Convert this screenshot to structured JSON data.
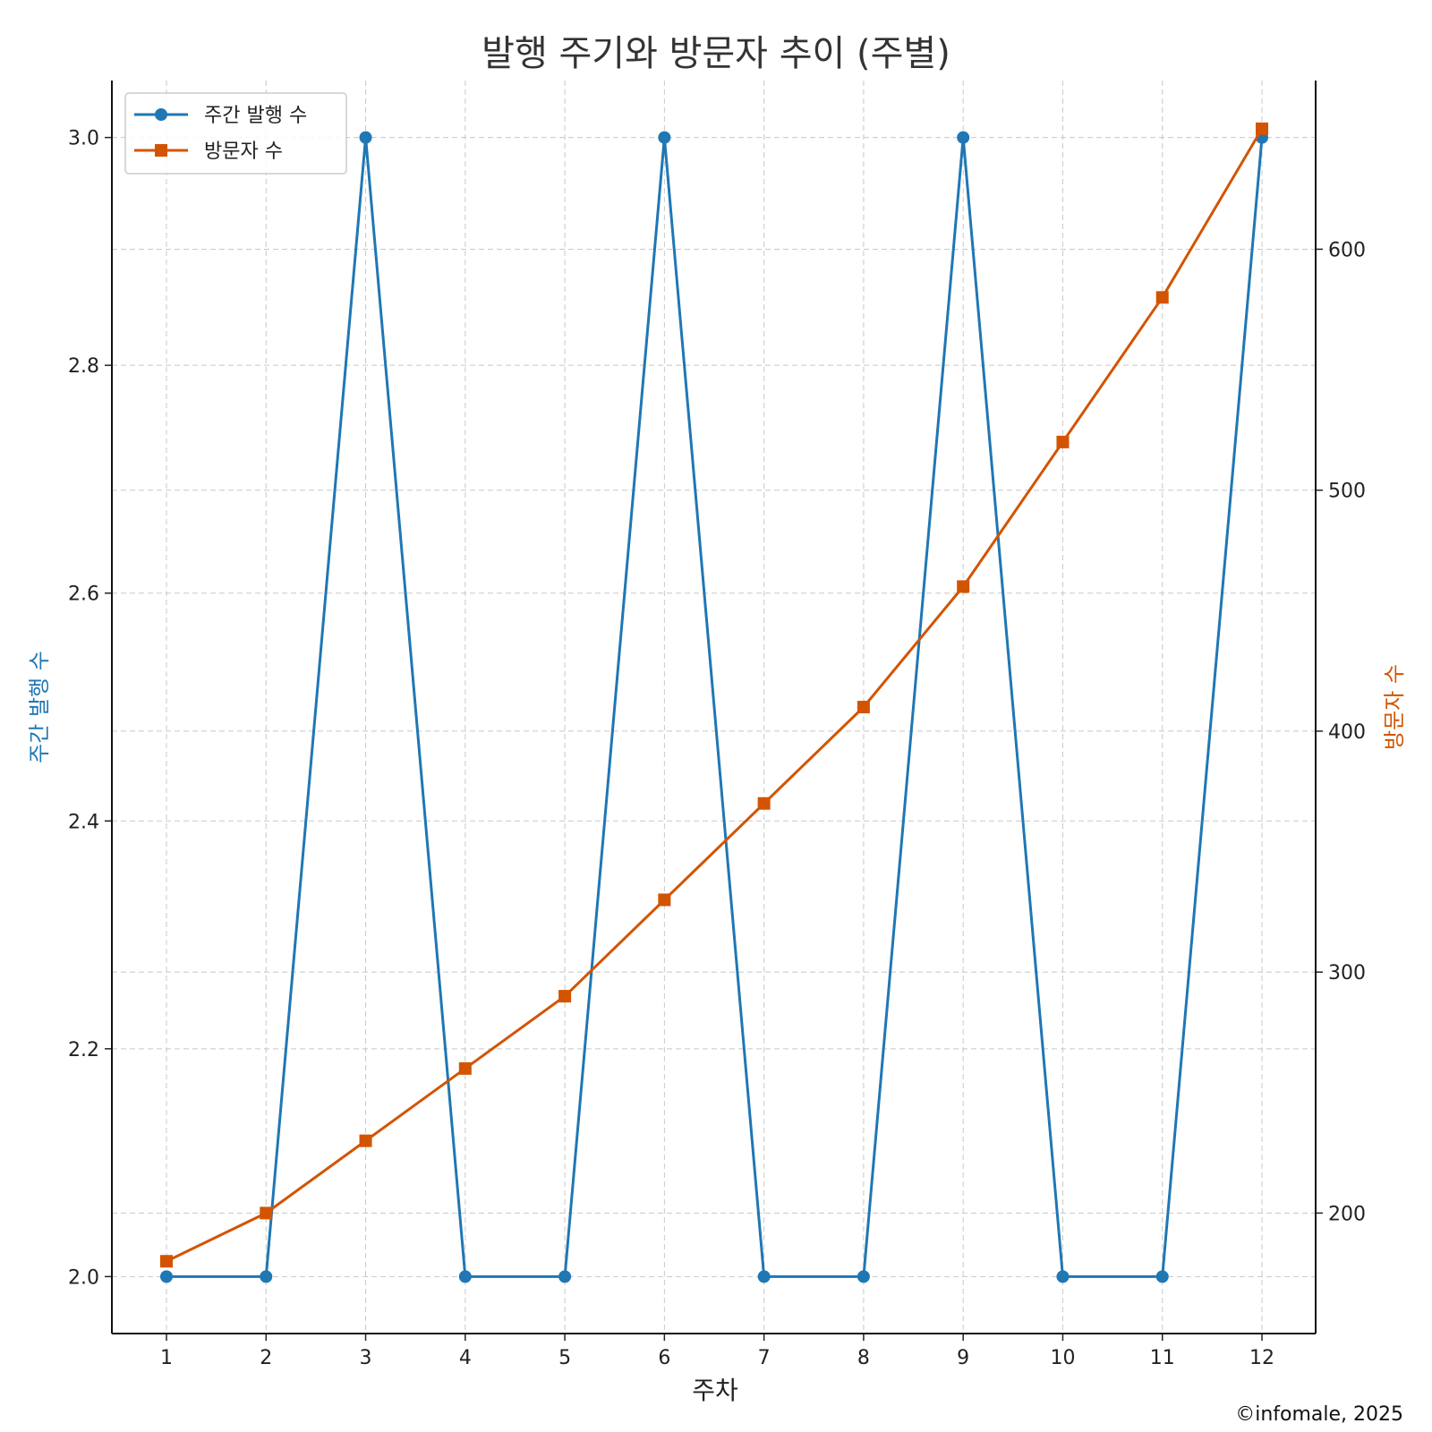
{
  "chart_data": {
    "type": "line",
    "title": "발행 주기와 방문자 추이 (주별)",
    "xlabel": "주차",
    "ylabel_left": "주간 발행 수",
    "ylabel_right": "방문자 수",
    "x": [
      1,
      2,
      3,
      4,
      5,
      6,
      7,
      8,
      9,
      10,
      11,
      12
    ],
    "x_ticks": [
      "1",
      "2",
      "3",
      "4",
      "5",
      "6",
      "7",
      "8",
      "9",
      "10",
      "11",
      "12"
    ],
    "y_left_ticks": [
      "2.0",
      "2.2",
      "2.4",
      "2.6",
      "2.8",
      "3.0"
    ],
    "y_right_ticks": [
      "200",
      "300",
      "400",
      "500",
      "600"
    ],
    "y_left_range": [
      1.95,
      3.05
    ],
    "y_right_range": [
      150,
      670
    ],
    "series": [
      {
        "name": "주간 발행 수",
        "axis": "left",
        "color": "#1f77b4",
        "marker": "circle",
        "values": [
          2,
          2,
          3,
          2,
          2,
          3,
          2,
          2,
          3,
          2,
          2,
          3
        ]
      },
      {
        "name": "방문자 수",
        "axis": "right",
        "color": "#d35400",
        "marker": "square",
        "values": [
          180,
          200,
          230,
          260,
          290,
          330,
          370,
          410,
          460,
          520,
          580,
          650
        ]
      }
    ],
    "grid": true,
    "legend_position": "top-left"
  },
  "footer": {
    "copyright": "©infomale, 2025"
  }
}
